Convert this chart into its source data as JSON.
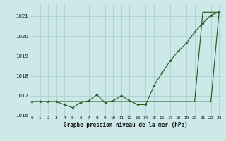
{
  "title": "Graphe pression niveau de la mer (hPa)",
  "background_color": "#cce8e8",
  "grid_color": "#aacaca",
  "line_color": "#1a5c1a",
  "marker_color": "#1a5c1a",
  "xlim": [
    -0.3,
    23.3
  ],
  "ylim": [
    1016.0,
    1021.6
  ],
  "yticks": [
    1016,
    1017,
    1018,
    1019,
    1020,
    1021
  ],
  "xticks": [
    0,
    1,
    2,
    3,
    4,
    5,
    6,
    7,
    8,
    9,
    10,
    11,
    12,
    13,
    14,
    15,
    16,
    17,
    18,
    19,
    20,
    21,
    22,
    23
  ],
  "series_marked": [
    1016.7,
    1016.7,
    1016.7,
    1016.7,
    1016.55,
    1016.4,
    1016.65,
    1016.75,
    1017.05,
    1016.65,
    1016.75,
    1017.0,
    1016.75,
    1016.55,
    1016.55,
    1017.5,
    1018.15,
    1018.75,
    1019.25,
    1019.65,
    1020.2,
    1020.65,
    1021.05,
    1021.2
  ],
  "series_line1": [
    1016.7,
    1016.7,
    1016.7,
    1016.7,
    1016.7,
    1016.7,
    1016.7,
    1016.7,
    1016.7,
    1016.7,
    1016.7,
    1016.7,
    1016.7,
    1016.7,
    1016.7,
    1016.7,
    1016.7,
    1016.7,
    1016.7,
    1016.7,
    1016.7,
    1016.7,
    1016.7,
    1021.2
  ],
  "series_line2": [
    1016.7,
    1016.7,
    1016.7,
    1016.7,
    1016.7,
    1016.7,
    1016.7,
    1016.7,
    1016.7,
    1016.7,
    1016.7,
    1016.7,
    1016.7,
    1016.7,
    1016.7,
    1016.7,
    1016.7,
    1016.7,
    1016.7,
    1016.7,
    1016.7,
    1021.2,
    1021.2,
    1021.2
  ]
}
